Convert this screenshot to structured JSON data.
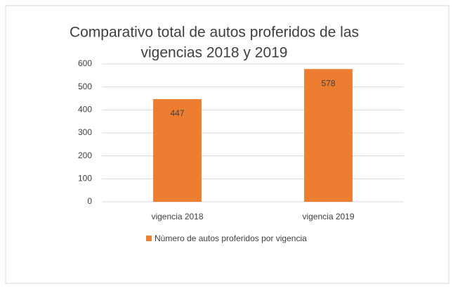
{
  "chart_data": {
    "type": "bar",
    "title": [
      "Comparativo total de autos proferidos de las",
      "vigencias 2018 y 2019"
    ],
    "categories": [
      "vigencia 2018",
      "vigencia 2019"
    ],
    "series": [
      {
        "name": "Nùmero de autos proferidos por vigencia",
        "color": "#ed7d31",
        "values": [
          447,
          578
        ]
      }
    ],
    "ylim": [
      0,
      600
    ],
    "yticks": [
      0,
      100,
      200,
      300,
      400,
      500,
      600
    ],
    "grid": true,
    "legend": "bottom"
  }
}
